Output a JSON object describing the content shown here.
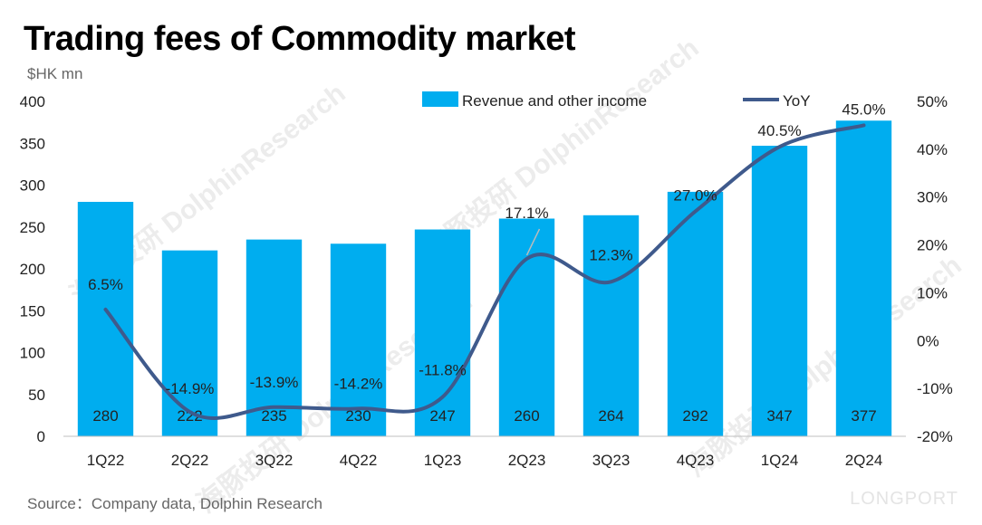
{
  "title": "Trading fees of Commodity market",
  "unit_label": "$HK mn",
  "source": "Source：Company data, Dolphin Research",
  "watermark_brand": "LONGPORT",
  "watermark_text": "海豚投研 DolphinResearch",
  "colors": {
    "bar": "#00adef",
    "line": "#3f5a8c",
    "grid": "#d9d9d9"
  },
  "chart_data": {
    "type": "bar",
    "categories": [
      "1Q22",
      "2Q22",
      "3Q22",
      "4Q22",
      "1Q23",
      "2Q23",
      "3Q23",
      "4Q23",
      "1Q24",
      "2Q24"
    ],
    "series": [
      {
        "name": "Revenue and other income",
        "type": "bar",
        "axis": "left",
        "values": [
          280,
          222,
          235,
          230,
          247,
          260,
          264,
          292,
          347,
          377
        ],
        "labels": [
          "280",
          "222",
          "235",
          "230",
          "247",
          "260",
          "264",
          "292",
          "347",
          "377"
        ]
      },
      {
        "name": "YoY",
        "type": "line",
        "axis": "right",
        "values": [
          6.5,
          -14.9,
          -13.9,
          -14.2,
          -11.8,
          17.1,
          12.3,
          27.0,
          40.5,
          45.0
        ],
        "labels": [
          "6.5%",
          "-14.9%",
          "-13.9%",
          "-14.2%",
          "-11.8%",
          "17.1%",
          "12.3%",
          "27.0%",
          "40.5%",
          "45.0%"
        ]
      }
    ],
    "y_left": {
      "min": 0,
      "max": 400,
      "ticks": [
        "0",
        "50",
        "100",
        "150",
        "200",
        "250",
        "300",
        "350",
        "400"
      ]
    },
    "y_right": {
      "min": -20,
      "max": 50,
      "ticks": [
        "-20%",
        "-10%",
        "0%",
        "10%",
        "20%",
        "30%",
        "40%",
        "50%"
      ]
    },
    "grid": false,
    "legend_position": "top-right"
  }
}
